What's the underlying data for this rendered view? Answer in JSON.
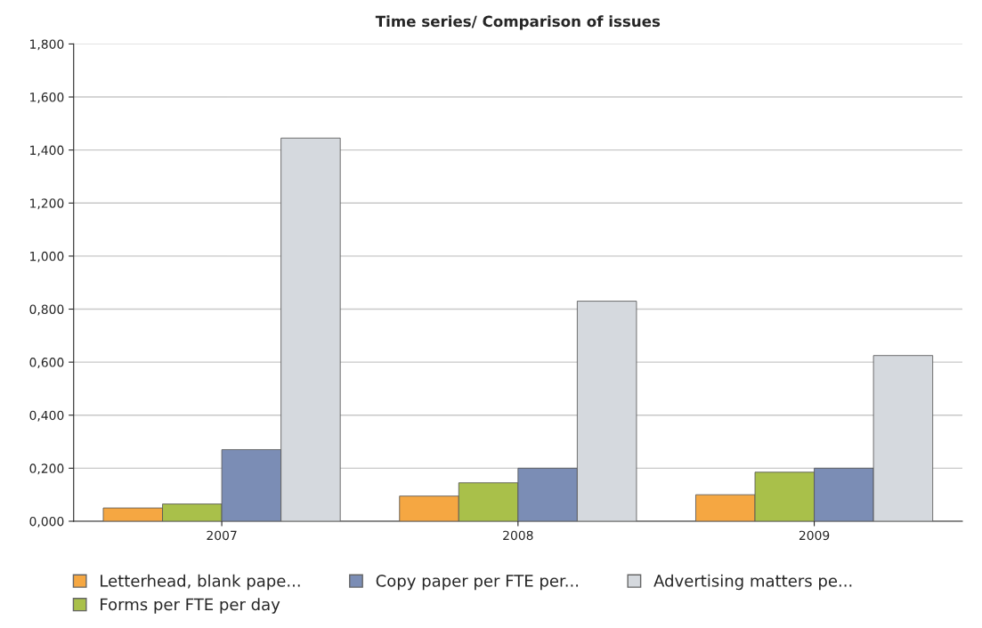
{
  "chart_data": {
    "type": "bar",
    "title": "Time series/ Comparison of issues",
    "categories": [
      "2007",
      "2008",
      "2009"
    ],
    "series": [
      {
        "name": "Letterhead, blank pape...",
        "color": "#f5a742",
        "values": [
          0.05,
          0.095,
          0.1
        ]
      },
      {
        "name": "Forms per FTE per day",
        "color": "#a9c04a",
        "values": [
          0.065,
          0.145,
          0.185
        ]
      },
      {
        "name": "Copy paper per FTE per...",
        "color": "#7b8db5",
        "values": [
          0.27,
          0.2,
          0.2
        ]
      },
      {
        "name": "Advertising matters pe...",
        "color": "#d5d9de",
        "values": [
          1.445,
          0.83,
          0.625
        ]
      }
    ],
    "ylim": [
      0,
      1.8
    ],
    "yticks": [
      {
        "value": 0,
        "label": "0,000"
      },
      {
        "value": 0.2,
        "label": "0,200"
      },
      {
        "value": 0.4,
        "label": "0,400"
      },
      {
        "value": 0.6,
        "label": "0,600"
      },
      {
        "value": 0.8,
        "label": "0,800"
      },
      {
        "value": 1.0,
        "label": "1,000"
      },
      {
        "value": 1.2,
        "label": "1,200"
      },
      {
        "value": 1.4,
        "label": "1,400"
      },
      {
        "value": 1.6,
        "label": "1,600"
      },
      {
        "value": 1.8,
        "label": "1,800"
      }
    ],
    "grid": "y",
    "legend": "bottom"
  }
}
